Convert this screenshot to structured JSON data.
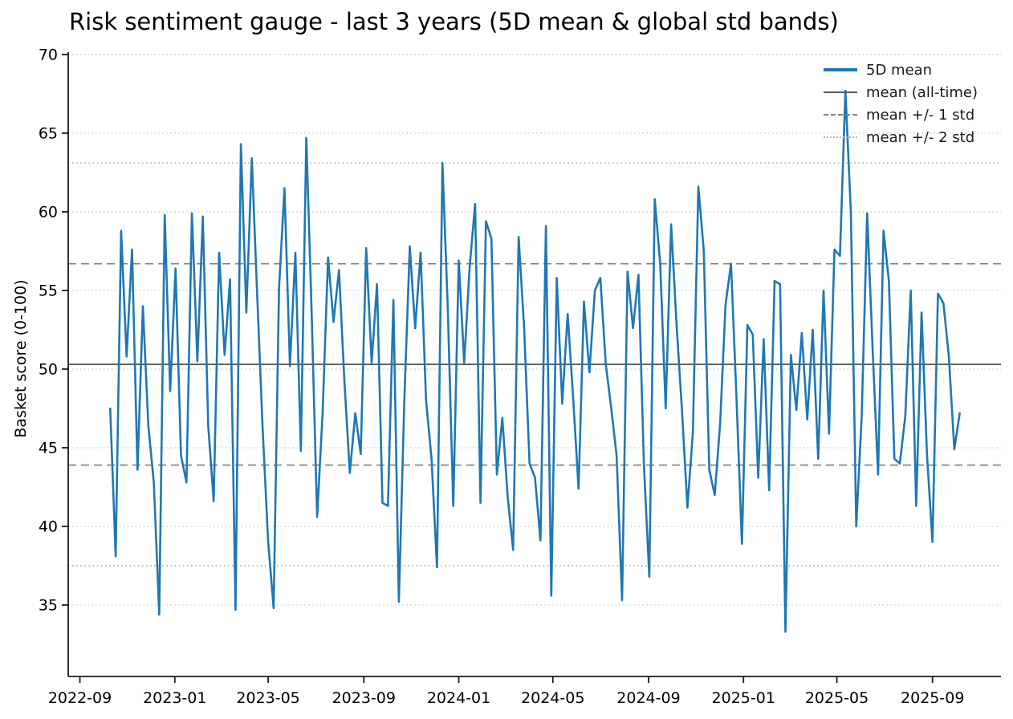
{
  "title": "Risk sentiment gauge - last 3 years (5D mean & global std bands)",
  "axes": {
    "ylabel": "Basket score (0-100)",
    "x_tick_labels": [
      "2022-09",
      "2023-01",
      "2023-05",
      "2023-09",
      "2024-01",
      "2024-05",
      "2024-09",
      "2025-01",
      "2025-05",
      "2025-09"
    ],
    "y_tick_values": [
      35,
      40,
      45,
      50,
      55,
      60,
      65,
      70
    ]
  },
  "legend": {
    "items": [
      {
        "label": "5D mean",
        "style": "solid-blue"
      },
      {
        "label": "mean (all-time)",
        "style": "solid-gray"
      },
      {
        "label": "mean +/- 1 std",
        "style": "dashed-gray"
      },
      {
        "label": "mean +/- 2 std",
        "style": "dotted-gray"
      }
    ]
  },
  "colors": {
    "series": "#1f77b4",
    "mean_line": "#595959",
    "std1_line": "#7f7f7f",
    "std2_line": "#b3b3b3",
    "grid": "#cccccc",
    "spine": "#1a1a1a",
    "text": "#000000",
    "background": "#ffffff"
  },
  "chart_data": {
    "type": "line",
    "title": "Risk sentiment gauge - last 3 years (5D mean & global std bands)",
    "xlabel": "",
    "ylabel": "Basket score (0-100)",
    "legend_position": "upper right, frameless",
    "grid": "horizontal dotted gridlines at every y tick",
    "ylim": [
      30.46,
      70.15
    ],
    "x_axis": {
      "min_date": "2022-08-17",
      "max_date": "2025-11-28",
      "tick_labels": [
        "2022-09",
        "2023-01",
        "2023-05",
        "2023-09",
        "2024-01",
        "2024-05",
        "2024-09",
        "2025-01",
        "2025-05",
        "2025-09"
      ]
    },
    "stats": {
      "mean_all_time": 50.3,
      "std": 6.4,
      "mean_plus_1std": 56.7,
      "mean_minus_1std": 43.9,
      "mean_plus_2std": 63.1,
      "mean_minus_2std": 37.5
    },
    "reference_lines": [
      {
        "name": "mean (all-time)",
        "value": 50.3,
        "style": "solid",
        "color": "#595959"
      },
      {
        "name": "mean + 1 std",
        "value": 56.7,
        "style": "dashed",
        "color": "#7f7f7f"
      },
      {
        "name": "mean - 1 std",
        "value": 43.9,
        "style": "dashed",
        "color": "#7f7f7f"
      },
      {
        "name": "mean + 2 std",
        "value": 63.1,
        "style": "dotted",
        "color": "#b3b3b3"
      },
      {
        "name": "mean - 2 std",
        "value": 37.5,
        "style": "dotted",
        "color": "#b3b3b3"
      }
    ],
    "series": [
      {
        "name": "5D mean",
        "color": "#1f77b4",
        "start_date": "2022-10-10",
        "interval_days": 7,
        "values": [
          47.5,
          38.1,
          58.8,
          50.8,
          57.6,
          43.6,
          54.0,
          46.4,
          42.8,
          34.4,
          59.8,
          48.6,
          56.4,
          44.5,
          42.8,
          59.9,
          50.5,
          59.7,
          46.4,
          41.6,
          57.4,
          50.9,
          55.7,
          34.7,
          64.3,
          53.6,
          63.4,
          54.6,
          46.1,
          39.0,
          34.8,
          55.1,
          61.5,
          50.2,
          57.4,
          44.8,
          64.7,
          53.5,
          40.6,
          47.2,
          57.1,
          53.0,
          56.3,
          49.3,
          43.4,
          47.2,
          44.6,
          57.7,
          50.4,
          55.4,
          41.5,
          41.3,
          54.4,
          35.2,
          48.0,
          57.8,
          52.6,
          57.4,
          48.0,
          44.3,
          37.4,
          63.1,
          53.8,
          41.3,
          56.9,
          50.4,
          56.5,
          60.5,
          41.5,
          59.4,
          58.3,
          43.3,
          46.9,
          41.8,
          38.5,
          58.4,
          52.7,
          44.0,
          43.1,
          39.1,
          59.1,
          35.6,
          55.8,
          47.8,
          53.5,
          48.2,
          42.4,
          54.3,
          49.8,
          55.0,
          55.8,
          50.3,
          47.5,
          44.5,
          35.3,
          56.2,
          52.6,
          56.0,
          43.9,
          36.8,
          60.8,
          56.7,
          47.5,
          59.2,
          52.8,
          47.3,
          41.2,
          46.0,
          61.6,
          57.5,
          43.6,
          42.0,
          46.5,
          54.1,
          56.7,
          48.2,
          38.9,
          52.8,
          52.2,
          43.1,
          51.9,
          42.3,
          55.6,
          55.4,
          33.3,
          50.9,
          47.4,
          52.3,
          46.8,
          52.5,
          44.3,
          55.0,
          45.9,
          57.6,
          57.2,
          67.7,
          60.0,
          40.0,
          47.0,
          59.9,
          51.3,
          43.3,
          58.8,
          55.6,
          44.3,
          44.0,
          47.0,
          55.0,
          41.3,
          53.6,
          44.5,
          39.0,
          54.8,
          54.2,
          50.8,
          44.9,
          47.2
        ]
      }
    ]
  }
}
